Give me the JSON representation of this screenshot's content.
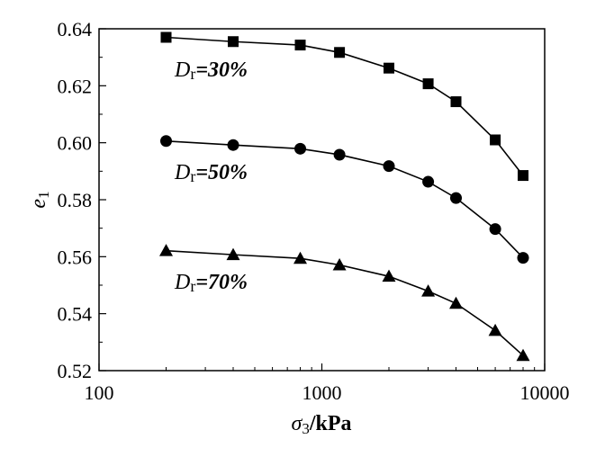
{
  "chart_data": {
    "type": "line",
    "x_scale": "log",
    "xlim": [
      100,
      10000
    ],
    "ylim": [
      0.52,
      0.64
    ],
    "x_ticks": [
      {
        "value": 100,
        "label": "100"
      },
      {
        "value": 1000,
        "label": "1000"
      },
      {
        "value": 10000,
        "label": "10000"
      }
    ],
    "y_ticks": [
      {
        "value": 0.52,
        "label": "0.52"
      },
      {
        "value": 0.54,
        "label": "0.54"
      },
      {
        "value": 0.56,
        "label": "0.56"
      },
      {
        "value": 0.58,
        "label": "0.58"
      },
      {
        "value": 0.6,
        "label": "0.60"
      },
      {
        "value": 0.62,
        "label": "0.62"
      },
      {
        "value": 0.64,
        "label": "0.64"
      }
    ],
    "xlabel": {
      "symbol": "σ",
      "sub": "3",
      "rest": "/kPa"
    },
    "ylabel": {
      "symbol": "e",
      "sub": "1"
    },
    "grid": false,
    "x": [
      200,
      400,
      800,
      1200,
      2000,
      3000,
      4000,
      6000,
      8000
    ],
    "series": [
      {
        "label": {
          "prefix": "D",
          "sub": "r",
          "rest": "=30%"
        },
        "marker": "square",
        "values": [
          0.637,
          0.6355,
          0.6343,
          0.6317,
          0.6262,
          0.6207,
          0.6144,
          0.601,
          0.5885
        ]
      },
      {
        "label": {
          "prefix": "D",
          "sub": "r",
          "rest": "=50%"
        },
        "marker": "circle",
        "values": [
          0.6006,
          0.5992,
          0.5979,
          0.5958,
          0.5918,
          0.5863,
          0.5806,
          0.5697,
          0.5596
        ]
      },
      {
        "label": {
          "prefix": "D",
          "sub": "r",
          "rest": "=70%"
        },
        "marker": "triangle",
        "values": [
          0.5621,
          0.5607,
          0.5594,
          0.5571,
          0.5531,
          0.5479,
          0.5436,
          0.5341,
          0.5253
        ]
      }
    ]
  }
}
